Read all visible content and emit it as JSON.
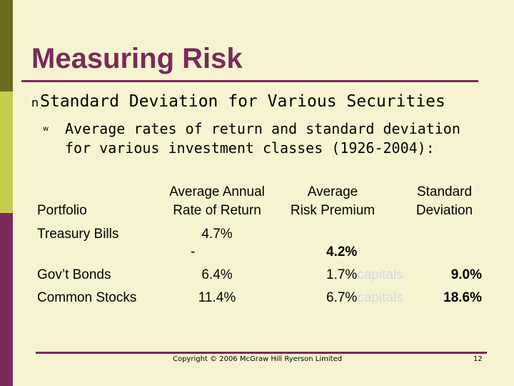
{
  "slide": {
    "title": "Measuring Risk",
    "bullet1": {
      "marker": "n",
      "text": "Standard Deviation for Various Securities"
    },
    "bullet2": {
      "marker": "w",
      "line1": "Average rates of return and standard deviation",
      "line2": "for various investment classes (1926-2004):"
    }
  },
  "table": {
    "headers": {
      "portfolio": "Portfolio",
      "return_l1": "Average Annual",
      "return_l2": "Rate of Return",
      "premium_l1": "Average",
      "premium_l2": "Risk Premium",
      "stdev_l1": "Standard",
      "stdev_l2": "Deviation"
    },
    "rows": [
      {
        "name": "Treasury Bills",
        "return": "4.7%",
        "return_extra": "-",
        "premium": "4.2%",
        "stdev": ""
      },
      {
        "name": "Gov’t Bonds",
        "return": "6.4%",
        "premium": "1.7%",
        "premium_ghost": "capitals",
        "stdev": "9.0%"
      },
      {
        "name": "Common Stocks",
        "return": "11.4%",
        "premium": "6.7%",
        "premium_ghost": "capitals",
        "stdev": "18.6%"
      }
    ]
  },
  "footer": {
    "copyright": "Copyright © 2006 McGraw Hill Ryerson Limited",
    "page_number": "12"
  },
  "colors": {
    "background": "#f6f4d0",
    "accent": "#7a2a5a",
    "bar_top": "#6b6b1e",
    "bar_mid": "#c8cc4e"
  }
}
